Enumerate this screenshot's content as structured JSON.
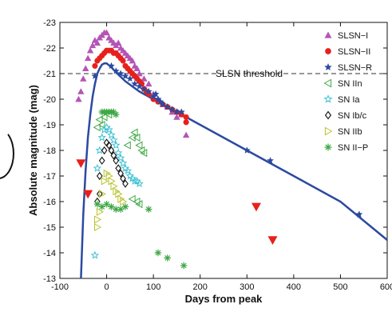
{
  "chart_data": {
    "type": "scatter",
    "xlabel": "Days from peak",
    "ylabel": "Absolute magnitude (mag)",
    "xlim": [
      -100,
      600
    ],
    "ylim": [
      -23,
      -13
    ],
    "y_inverted": true,
    "grid": false,
    "legend_position": "top-right",
    "x_ticks": [
      "-100",
      "0",
      "100",
      "200",
      "300",
      "400",
      "500",
      "600"
    ],
    "x_tick_values": [
      -100,
      0,
      100,
      200,
      300,
      400,
      500,
      600
    ],
    "y_ticks": [
      "-23",
      "-22",
      "-21",
      "-20",
      "-19",
      "-18",
      "-17",
      "-16",
      "-15",
      "-14",
      "-13"
    ],
    "y_tick_values": [
      -23,
      -22,
      -21,
      -20,
      -19,
      -18,
      -17,
      -16,
      -15,
      -14,
      -13
    ],
    "threshold": {
      "label": "SLSN threshold",
      "value": -21
    },
    "series": [
      {
        "name": "SLSN−I",
        "marker": "triangle-up",
        "color": "#b455b6",
        "filled": true,
        "points": [
          [
            -60,
            -20
          ],
          [
            -55,
            -20.3
          ],
          [
            -50,
            -20.8
          ],
          [
            -45,
            -21.2
          ],
          [
            -40,
            -21.6
          ],
          [
            -35,
            -21.9
          ],
          [
            -30,
            -22.1
          ],
          [
            -25,
            -22.3
          ],
          [
            -20,
            -22.2
          ],
          [
            -15,
            -22.4
          ],
          [
            -10,
            -22.5
          ],
          [
            -5,
            -22.6
          ],
          [
            0,
            -22.6
          ],
          [
            5,
            -22.4
          ],
          [
            10,
            -22.3
          ],
          [
            15,
            -22.2
          ],
          [
            20,
            -22.1
          ],
          [
            25,
            -22.2
          ],
          [
            30,
            -22.0
          ],
          [
            35,
            -21.9
          ],
          [
            40,
            -21.8
          ],
          [
            45,
            -21.7
          ],
          [
            50,
            -21.6
          ],
          [
            55,
            -21.5
          ],
          [
            60,
            -21.3
          ],
          [
            65,
            -21.2
          ],
          [
            70,
            -21.0
          ],
          [
            80,
            -20.8
          ],
          [
            90,
            -20.6
          ],
          [
            100,
            -20.2
          ],
          [
            110,
            -20.0
          ],
          [
            120,
            -19.8
          ],
          [
            130,
            -19.7
          ],
          [
            140,
            -19.5
          ],
          [
            150,
            -19.3
          ],
          [
            160,
            -19.4
          ],
          [
            170,
            -18.6
          ]
        ]
      },
      {
        "name": "SLSN−II",
        "marker": "circle",
        "color": "#e8201c",
        "filled": true,
        "points": [
          [
            -25,
            -21.3
          ],
          [
            -20,
            -21.5
          ],
          [
            -15,
            -21.6
          ],
          [
            -10,
            -21.7
          ],
          [
            -5,
            -21.8
          ],
          [
            0,
            -21.9
          ],
          [
            5,
            -21.9
          ],
          [
            10,
            -21.9
          ],
          [
            15,
            -21.8
          ],
          [
            20,
            -21.8
          ],
          [
            25,
            -21.7
          ],
          [
            30,
            -21.6
          ],
          [
            35,
            -21.5
          ],
          [
            40,
            -21.3
          ],
          [
            45,
            -21.2
          ],
          [
            50,
            -21.1
          ],
          [
            55,
            -21.0
          ],
          [
            60,
            -20.9
          ],
          [
            65,
            -20.8
          ],
          [
            70,
            -20.7
          ],
          [
            75,
            -20.6
          ],
          [
            80,
            -20.4
          ],
          [
            85,
            -20.3
          ],
          [
            90,
            -20.2
          ],
          [
            100,
            -20.0
          ],
          [
            110,
            -19.9
          ],
          [
            120,
            -19.8
          ],
          [
            130,
            -19.7
          ],
          [
            140,
            -19.6
          ],
          [
            150,
            -19.5
          ],
          [
            160,
            -19.4
          ],
          [
            170,
            -19.3
          ],
          [
            170,
            -19.1
          ]
        ]
      },
      {
        "name": "SLSN−R",
        "marker": "star",
        "color": "#2b4aa0",
        "filled": true,
        "points": [
          [
            -25,
            -20.9
          ],
          [
            10,
            -21.3
          ],
          [
            20,
            -21.1
          ],
          [
            30,
            -21.0
          ],
          [
            40,
            -20.9
          ],
          [
            50,
            -20.8
          ],
          [
            60,
            -20.6
          ],
          [
            70,
            -20.5
          ],
          [
            80,
            -20.4
          ],
          [
            90,
            -20.3
          ],
          [
            100,
            -20.1
          ],
          [
            105,
            -20.2
          ],
          [
            110,
            -20.0
          ],
          [
            115,
            -19.9
          ],
          [
            120,
            -19.8
          ],
          [
            130,
            -19.7
          ],
          [
            140,
            -19.6
          ],
          [
            150,
            -19.5
          ],
          [
            160,
            -19.5
          ],
          [
            300,
            -18.0
          ],
          [
            350,
            -17.6
          ],
          [
            540,
            -15.5
          ]
        ]
      },
      {
        "name": "SN IIn",
        "marker": "triangle-left",
        "color": "#3fa845",
        "filled": false,
        "points": [
          [
            -15,
            -19.2
          ],
          [
            -5,
            -19.3
          ],
          [
            5,
            -19.4
          ],
          [
            45,
            -18.2
          ],
          [
            55,
            -18.5
          ],
          [
            60,
            -18.7
          ],
          [
            65,
            -18.5
          ],
          [
            70,
            -18.2
          ],
          [
            75,
            -18.0
          ],
          [
            80,
            -17.9
          ],
          [
            55,
            -16.1
          ],
          [
            65,
            -16.0
          ],
          [
            70,
            -15.9
          ],
          [
            -20,
            -18.9
          ],
          [
            -10,
            -19.0
          ]
        ]
      },
      {
        "name": "SN Ia",
        "marker": "star-open",
        "color": "#3fc1d3",
        "filled": false,
        "points": [
          [
            -20,
            -17.3
          ],
          [
            -15,
            -18.0
          ],
          [
            -10,
            -18.5
          ],
          [
            -5,
            -18.8
          ],
          [
            0,
            -18.9
          ],
          [
            5,
            -18.8
          ],
          [
            10,
            -18.6
          ],
          [
            15,
            -18.4
          ],
          [
            20,
            -18.2
          ],
          [
            25,
            -17.9
          ],
          [
            30,
            -17.7
          ],
          [
            35,
            -17.5
          ],
          [
            40,
            -17.3
          ],
          [
            45,
            -17.2
          ],
          [
            50,
            -17.0
          ],
          [
            55,
            -16.9
          ],
          [
            60,
            -16.8
          ],
          [
            65,
            -16.8
          ],
          [
            70,
            -16.7
          ],
          [
            -25,
            -13.9
          ]
        ]
      },
      {
        "name": "SN Ib/c",
        "marker": "diamond-open",
        "color": "#111111",
        "filled": false,
        "points": [
          [
            -15,
            -17.0
          ],
          [
            -10,
            -17.6
          ],
          [
            -5,
            -18.0
          ],
          [
            0,
            -18.3
          ],
          [
            5,
            -18.2
          ],
          [
            10,
            -18.0
          ],
          [
            15,
            -17.8
          ],
          [
            20,
            -17.6
          ],
          [
            25,
            -17.3
          ],
          [
            30,
            -17.1
          ],
          [
            35,
            -16.9
          ],
          [
            40,
            -16.7
          ],
          [
            -20,
            -16.0
          ],
          [
            -15,
            -16.3
          ]
        ]
      },
      {
        "name": "SN IIb",
        "marker": "triangle-right",
        "color": "#b9c22c",
        "filled": false,
        "points": [
          [
            -20,
            -15.0
          ],
          [
            -15,
            -15.6
          ],
          [
            -10,
            -16.3
          ],
          [
            -5,
            -16.8
          ],
          [
            0,
            -17.1
          ],
          [
            5,
            -17.0
          ],
          [
            10,
            -16.8
          ],
          [
            15,
            -16.6
          ],
          [
            20,
            -16.4
          ],
          [
            25,
            -16.3
          ],
          [
            30,
            -16.1
          ],
          [
            35,
            -16.0
          ],
          [
            -20,
            -15.3
          ]
        ]
      },
      {
        "name": "SN II−P",
        "marker": "asterisk",
        "color": "#3fa845",
        "filled": false,
        "points": [
          [
            -10,
            -19.5
          ],
          [
            -5,
            -19.5
          ],
          [
            0,
            -19.5
          ],
          [
            5,
            -19.5
          ],
          [
            10,
            -19.5
          ],
          [
            15,
            -19.5
          ],
          [
            20,
            -19.4
          ],
          [
            -20,
            -15.9
          ],
          [
            -10,
            -15.8
          ],
          [
            0,
            -15.9
          ],
          [
            10,
            -15.8
          ],
          [
            20,
            -15.7
          ],
          [
            30,
            -15.7
          ],
          [
            40,
            -15.8
          ],
          [
            90,
            -15.7
          ],
          [
            110,
            -14.0
          ],
          [
            130,
            -13.8
          ],
          [
            165,
            -13.5
          ]
        ]
      },
      {
        "name": "",
        "marker": "triangle-down",
        "color": "#e8201c",
        "filled": true,
        "points": [
          [
            -55,
            -17.5
          ],
          [
            -40,
            -16.3
          ],
          [
            320,
            -15.8
          ],
          [
            355,
            -14.5
          ]
        ]
      }
    ],
    "model_curve": {
      "color": "#2b4aa0",
      "points": [
        [
          -55,
          -13
        ],
        [
          -50,
          -15.5
        ],
        [
          -45,
          -17.2
        ],
        [
          -40,
          -18.5
        ],
        [
          -35,
          -19.4
        ],
        [
          -30,
          -20.1
        ],
        [
          -25,
          -20.6
        ],
        [
          -20,
          -21.0
        ],
        [
          -15,
          -21.2
        ],
        [
          -10,
          -21.35
        ],
        [
          -5,
          -21.4
        ],
        [
          0,
          -21.4
        ],
        [
          10,
          -21.25
        ],
        [
          20,
          -21.05
        ],
        [
          40,
          -20.7
        ],
        [
          70,
          -20.3
        ],
        [
          100,
          -20.0
        ],
        [
          150,
          -19.5
        ],
        [
          200,
          -19.0
        ],
        [
          300,
          -18.0
        ],
        [
          400,
          -17.0
        ],
        [
          500,
          -16.0
        ],
        [
          600,
          -14.5
        ]
      ]
    }
  }
}
